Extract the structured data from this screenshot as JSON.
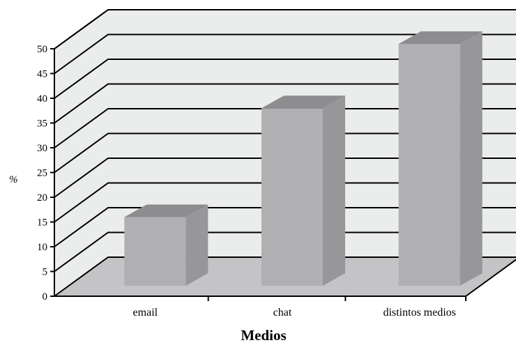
{
  "chart_data": {
    "type": "bar",
    "style": "3d",
    "categories": [
      "email",
      "chat",
      "distintos medios"
    ],
    "values": [
      15,
      37,
      50
    ],
    "xlabel": "Medios",
    "ylabel": "%",
    "ylim": [
      0,
      50
    ],
    "yticks": [
      0,
      5,
      10,
      15,
      20,
      25,
      30,
      35,
      40,
      45,
      50
    ],
    "grid": true,
    "legend": "none",
    "colors": {
      "bar_front": "#b0b0b2",
      "bar_side": "#979799",
      "bar_top": "#8d8d8f",
      "back_wall": "#ebecec",
      "floor": "#c4c4c6",
      "gridline": "#000000"
    }
  }
}
